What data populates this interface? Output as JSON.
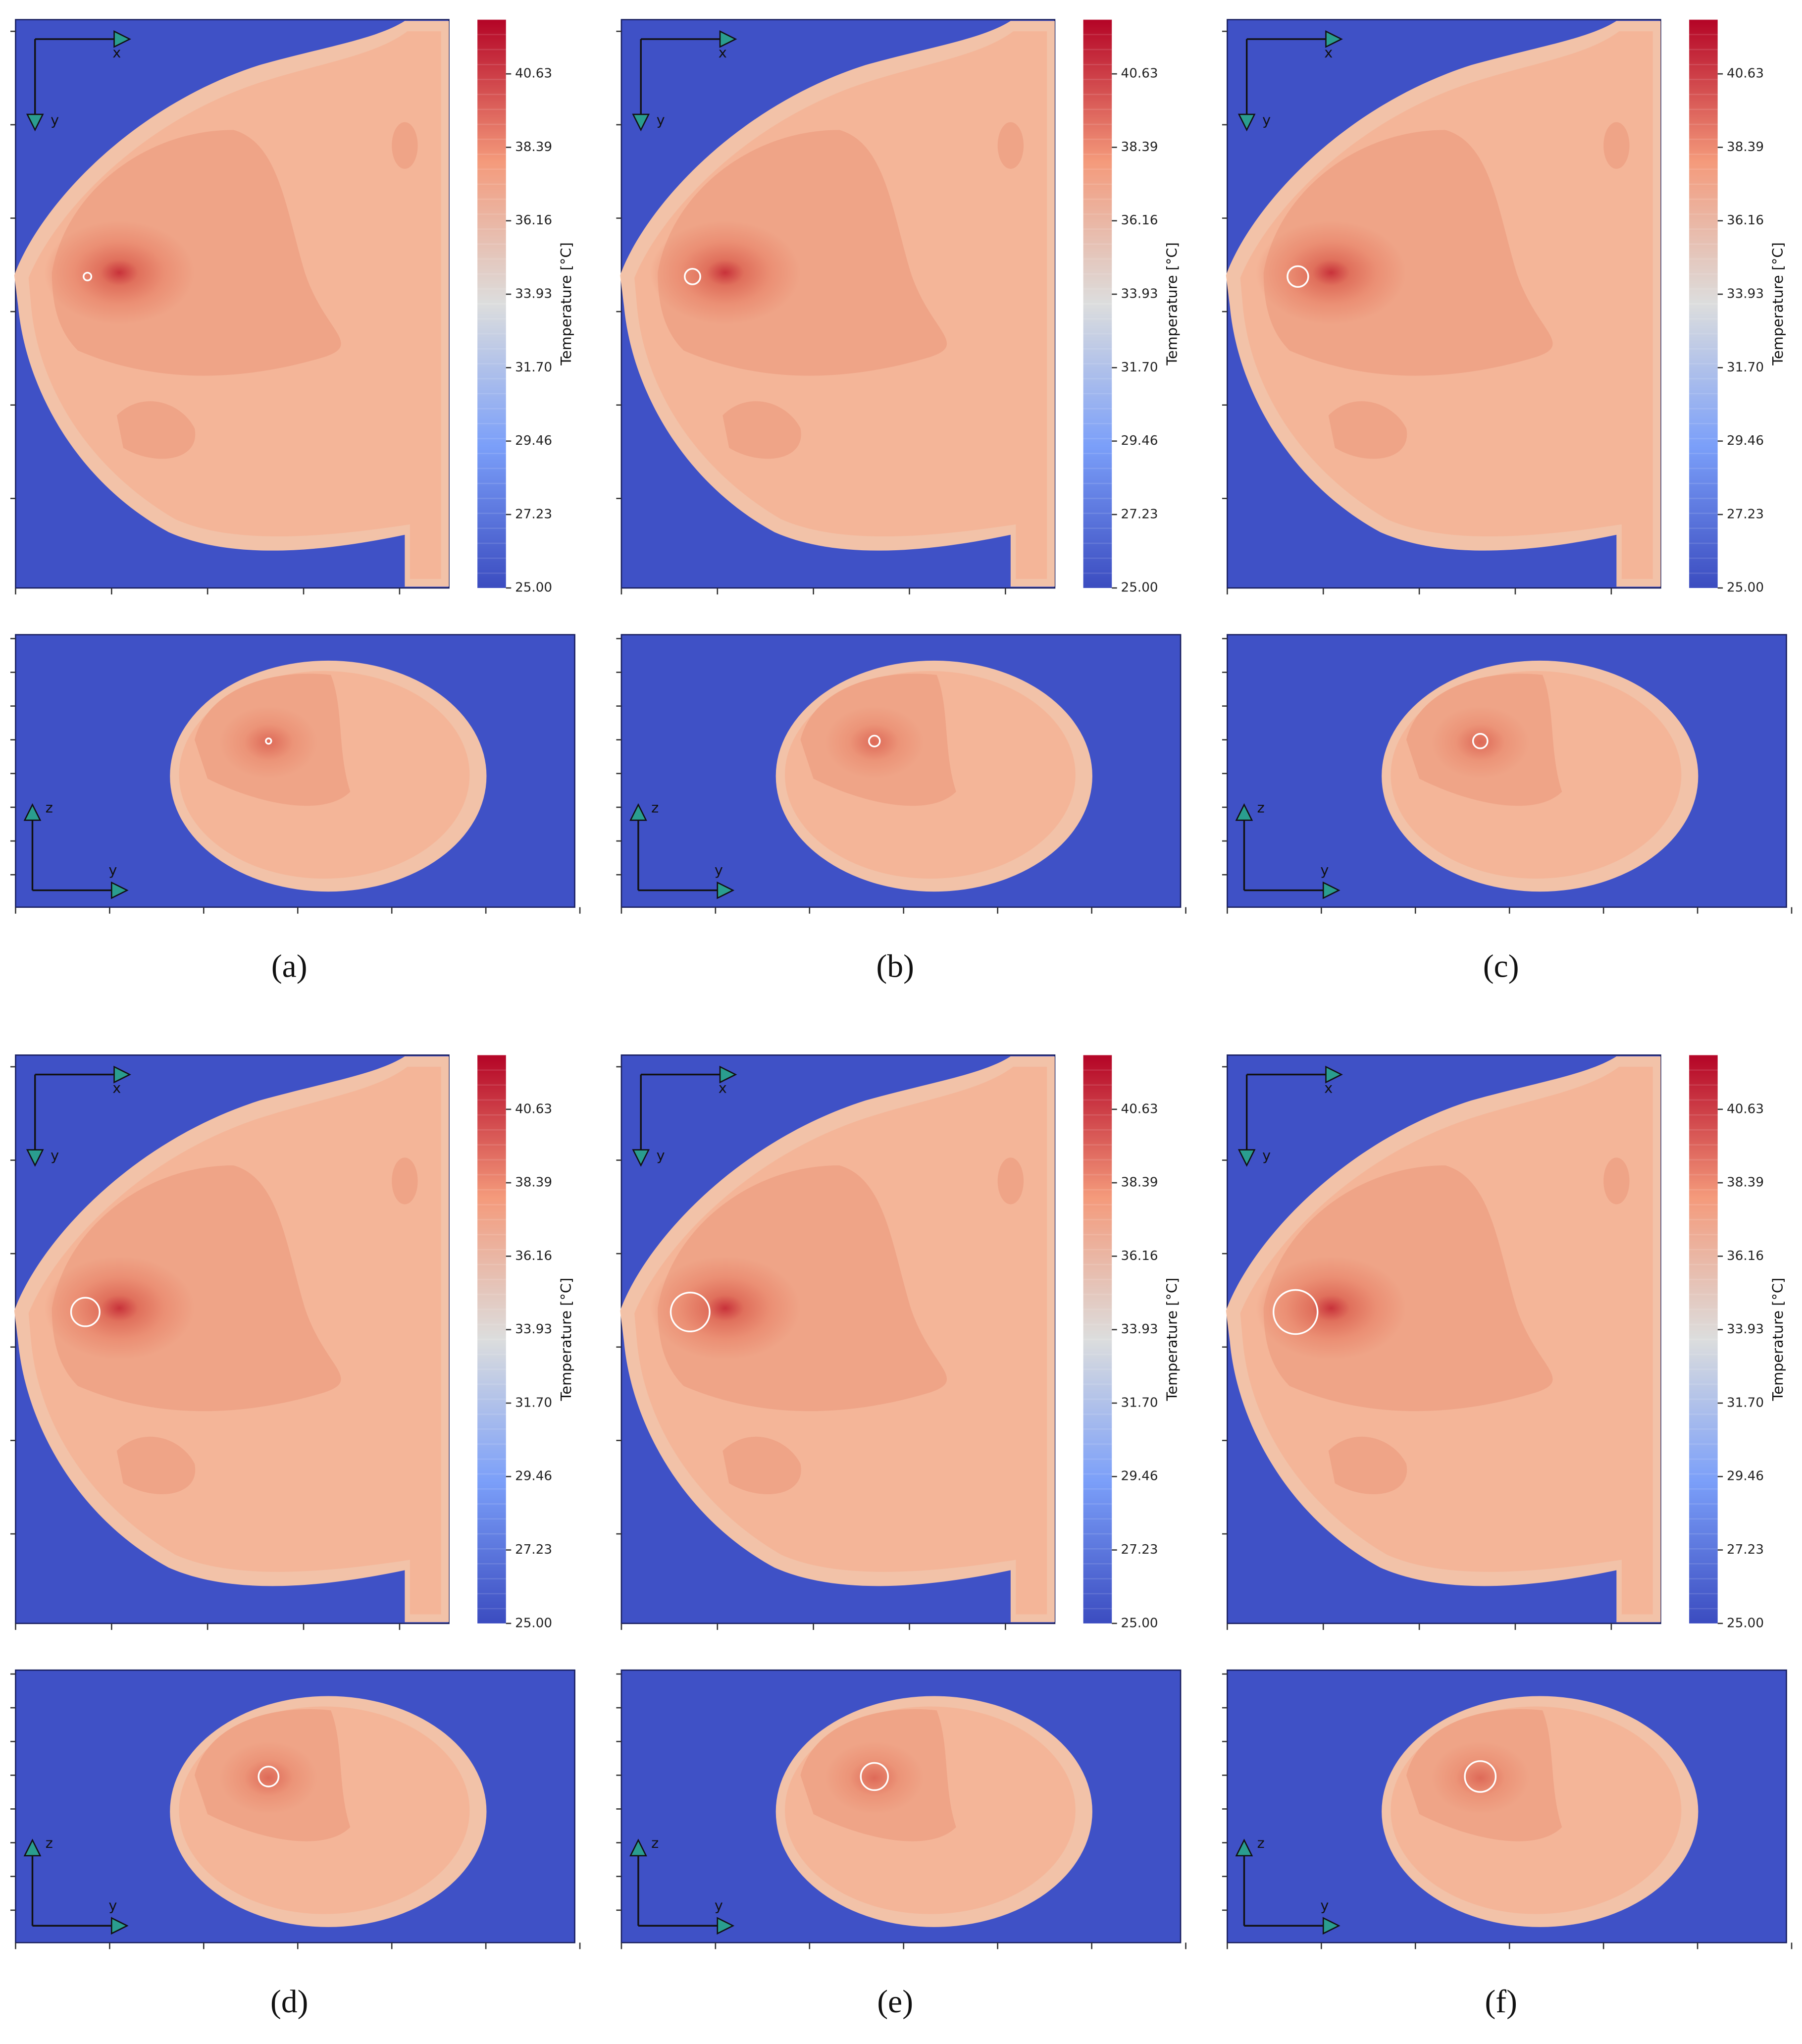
{
  "colorbar": {
    "label": "Temperature [°C]",
    "ticks": [
      "25.00",
      "27.23",
      "29.46",
      "31.70",
      "33.93",
      "36.16",
      "38.39",
      "40.63"
    ]
  },
  "axes": {
    "x": "x",
    "y": "y",
    "z": "z"
  },
  "panels": [
    {
      "label": "(a)"
    },
    {
      "label": "(b)"
    },
    {
      "label": "(c)"
    },
    {
      "label": "(d)"
    },
    {
      "label": "(e)"
    },
    {
      "label": "(f)"
    }
  ]
}
